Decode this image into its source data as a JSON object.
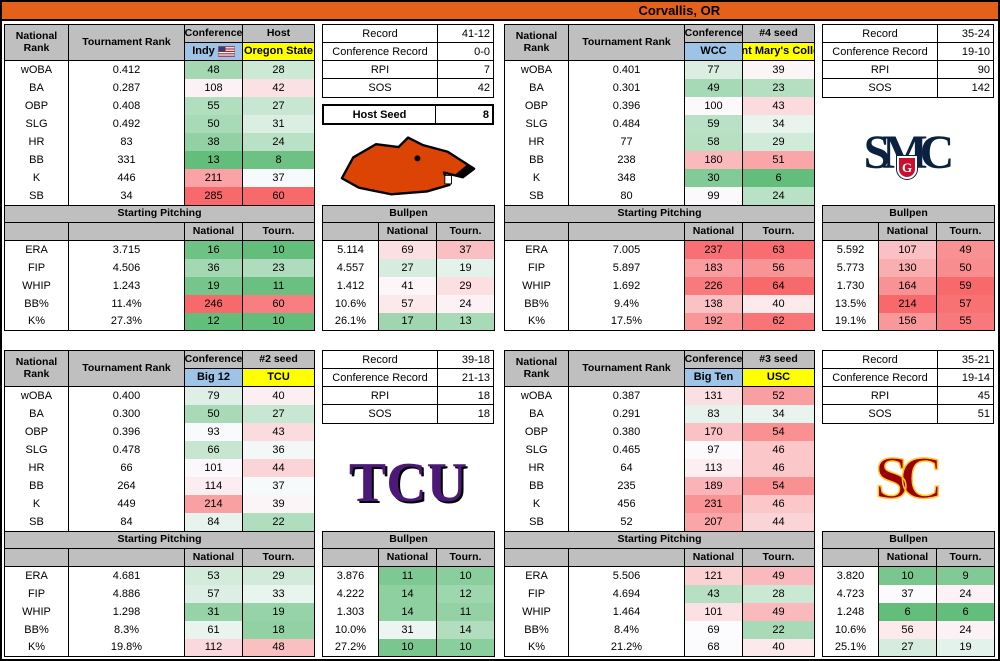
{
  "title": "Corvallis, OR",
  "labels": {
    "conference": "Conference",
    "national_rank": "National Rank",
    "tournament_rank": "Tournament Rank",
    "record": "Record",
    "conference_record": "Conference Record",
    "rpi": "RPI",
    "sos": "SOS",
    "host_seed": "Host Seed",
    "starting_pitching": "Starting Pitching",
    "bullpen": "Bullpen",
    "national": "National",
    "tourn": "Tourn."
  },
  "batting_stats": [
    "wOBA",
    "BA",
    "OBP",
    "SLG",
    "HR",
    "BB",
    "K",
    "SB"
  ],
  "pitching_stats": [
    "ERA",
    "FIP",
    "WHIP",
    "BB%",
    "K%"
  ],
  "colors": {
    "title_orange": "#E4611B",
    "header_gray": "#BFBFBF",
    "conference_blue": "#9DC3E6",
    "team_yellow": "#FFFF00",
    "scale_min_green": "#63BE7B",
    "scale_mid_white": "#FCFCFF",
    "scale_max_red": "#F8696B"
  },
  "teams": [
    {
      "conference": "Indy",
      "conference_flag": "us-flag",
      "seed_label": "Host",
      "name": "Oregon State",
      "logo": "oregon-state",
      "logo_text": "",
      "record": {
        "record": "41-12",
        "conference_record": "0-0",
        "rpi": "7",
        "sos": "42"
      },
      "host_seed": "8",
      "batting": {
        "values": [
          "0.412",
          "0.287",
          "0.408",
          "0.492",
          "83",
          "331",
          "446",
          "34"
        ],
        "national": [
          48,
          108,
          55,
          50,
          38,
          13,
          211,
          285
        ],
        "tournament": [
          28,
          42,
          27,
          31,
          24,
          8,
          37,
          60
        ]
      },
      "starting_pitching": {
        "values": [
          "3.715",
          "4.506",
          "1.243",
          "11.4%",
          "27.3%"
        ],
        "national": [
          16,
          36,
          19,
          246,
          12
        ],
        "tournament": [
          10,
          23,
          11,
          60,
          10
        ]
      },
      "bullpen": {
        "values": [
          "5.114",
          "4.557",
          "1.412",
          "10.6%",
          "26.1%"
        ],
        "national": [
          69,
          27,
          41,
          57,
          17
        ],
        "tournament": [
          37,
          19,
          29,
          24,
          13
        ]
      }
    },
    {
      "conference": "WCC",
      "seed_label": "#4 seed",
      "name": "Saint Mary's College",
      "logo": "saint-marys",
      "logo_text": "SMC",
      "logo_shield_text": "G",
      "record": {
        "record": "35-24",
        "conference_record": "19-10",
        "rpi": "90",
        "sos": "142"
      },
      "batting": {
        "values": [
          "0.401",
          "0.301",
          "0.396",
          "0.484",
          "77",
          "238",
          "348",
          "80"
        ],
        "national": [
          77,
          49,
          100,
          59,
          58,
          180,
          30,
          99
        ],
        "tournament": [
          39,
          23,
          43,
          34,
          29,
          51,
          6,
          24
        ]
      },
      "starting_pitching": {
        "values": [
          "7.005",
          "5.897",
          "1.692",
          "9.4%",
          "17.5%"
        ],
        "national": [
          237,
          183,
          226,
          138,
          192
        ],
        "tournament": [
          63,
          56,
          64,
          40,
          62
        ]
      },
      "bullpen": {
        "values": [
          "5.592",
          "5.773",
          "1.730",
          "13.5%",
          "19.1%"
        ],
        "national": [
          107,
          130,
          164,
          214,
          156
        ],
        "tournament": [
          49,
          50,
          59,
          57,
          55
        ]
      }
    },
    {
      "conference": "Big 12",
      "seed_label": "#2 seed",
      "name": "TCU",
      "logo": "tcu",
      "logo_text": "TCU",
      "record": {
        "record": "39-18",
        "conference_record": "21-13",
        "rpi": "18",
        "sos": "18"
      },
      "batting": {
        "values": [
          "0.400",
          "0.300",
          "0.396",
          "0.478",
          "66",
          "264",
          "449",
          "84"
        ],
        "national": [
          79,
          50,
          93,
          66,
          101,
          114,
          214,
          84
        ],
        "tournament": [
          40,
          27,
          43,
          36,
          44,
          37,
          39,
          22
        ]
      },
      "starting_pitching": {
        "values": [
          "4.681",
          "4.886",
          "1.298",
          "8.3%",
          "19.8%"
        ],
        "national": [
          53,
          57,
          31,
          61,
          112
        ],
        "tournament": [
          29,
          33,
          19,
          18,
          48
        ]
      },
      "bullpen": {
        "values": [
          "3.876",
          "4.222",
          "1.303",
          "10.0%",
          "27.2%"
        ],
        "national": [
          11,
          14,
          14,
          31,
          10
        ],
        "tournament": [
          10,
          12,
          11,
          14,
          10
        ]
      }
    },
    {
      "conference": "Big Ten",
      "seed_label": "#3 seed",
      "name": "USC",
      "logo": "usc",
      "logo_text": "SC",
      "record": {
        "record": "35-21",
        "conference_record": "19-14",
        "rpi": "45",
        "sos": "51"
      },
      "batting": {
        "values": [
          "0.387",
          "0.291",
          "0.380",
          "0.465",
          "64",
          "235",
          "456",
          "52"
        ],
        "national": [
          131,
          83,
          170,
          97,
          113,
          189,
          231,
          207
        ],
        "tournament": [
          52,
          34,
          54,
          46,
          46,
          54,
          46,
          44
        ]
      },
      "starting_pitching": {
        "values": [
          "5.506",
          "4.694",
          "1.464",
          "8.4%",
          "21.2%"
        ],
        "national": [
          121,
          43,
          101,
          69,
          68
        ],
        "tournament": [
          49,
          28,
          49,
          22,
          40
        ]
      },
      "bullpen": {
        "values": [
          "3.820",
          "4.723",
          "1.248",
          "10.6%",
          "25.1%"
        ],
        "national": [
          10,
          37,
          6,
          56,
          27
        ],
        "tournament": [
          9,
          24,
          6,
          24,
          19
        ]
      }
    }
  ]
}
